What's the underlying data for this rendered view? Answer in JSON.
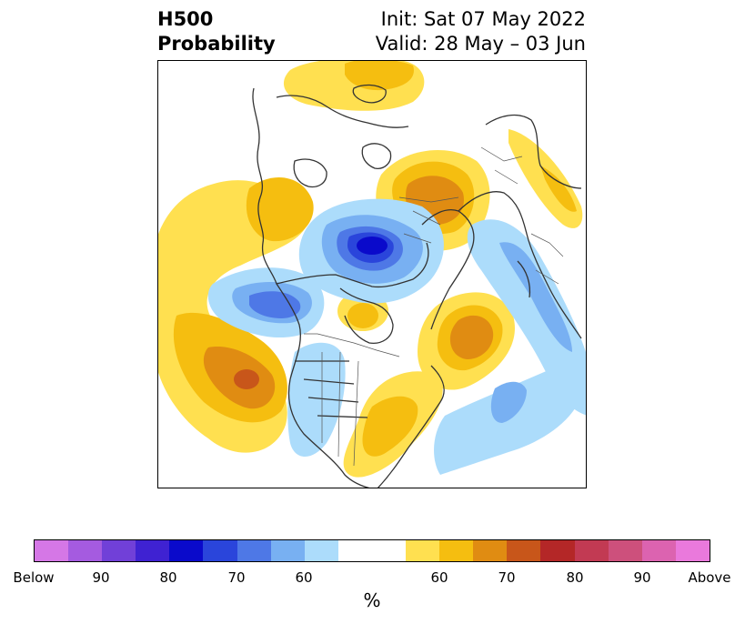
{
  "title": {
    "left_line1": "H500",
    "left_line2": "Probability",
    "right_line1": "Init: Sat 07 May 2022",
    "right_line2": "Valid: 28 May – 03 Jun"
  },
  "colorbar": {
    "label": "%",
    "colors": [
      "#d577e6",
      "#a55be0",
      "#7140d8",
      "#3f22d2",
      "#0a0acb",
      "#2a45db",
      "#4e78e6",
      "#78b0f2",
      "#acdcfb",
      "#ffffff",
      "#ffffff",
      "#ffe050",
      "#f5be10",
      "#e08c12",
      "#c8561a",
      "#b42727",
      "#c23a53",
      "#cd507c",
      "#dc63b0",
      "#ea79dc"
    ],
    "ticks": [
      "Below",
      "90",
      "80",
      "70",
      "60",
      "60",
      "70",
      "80",
      "90",
      "Above"
    ]
  }
}
